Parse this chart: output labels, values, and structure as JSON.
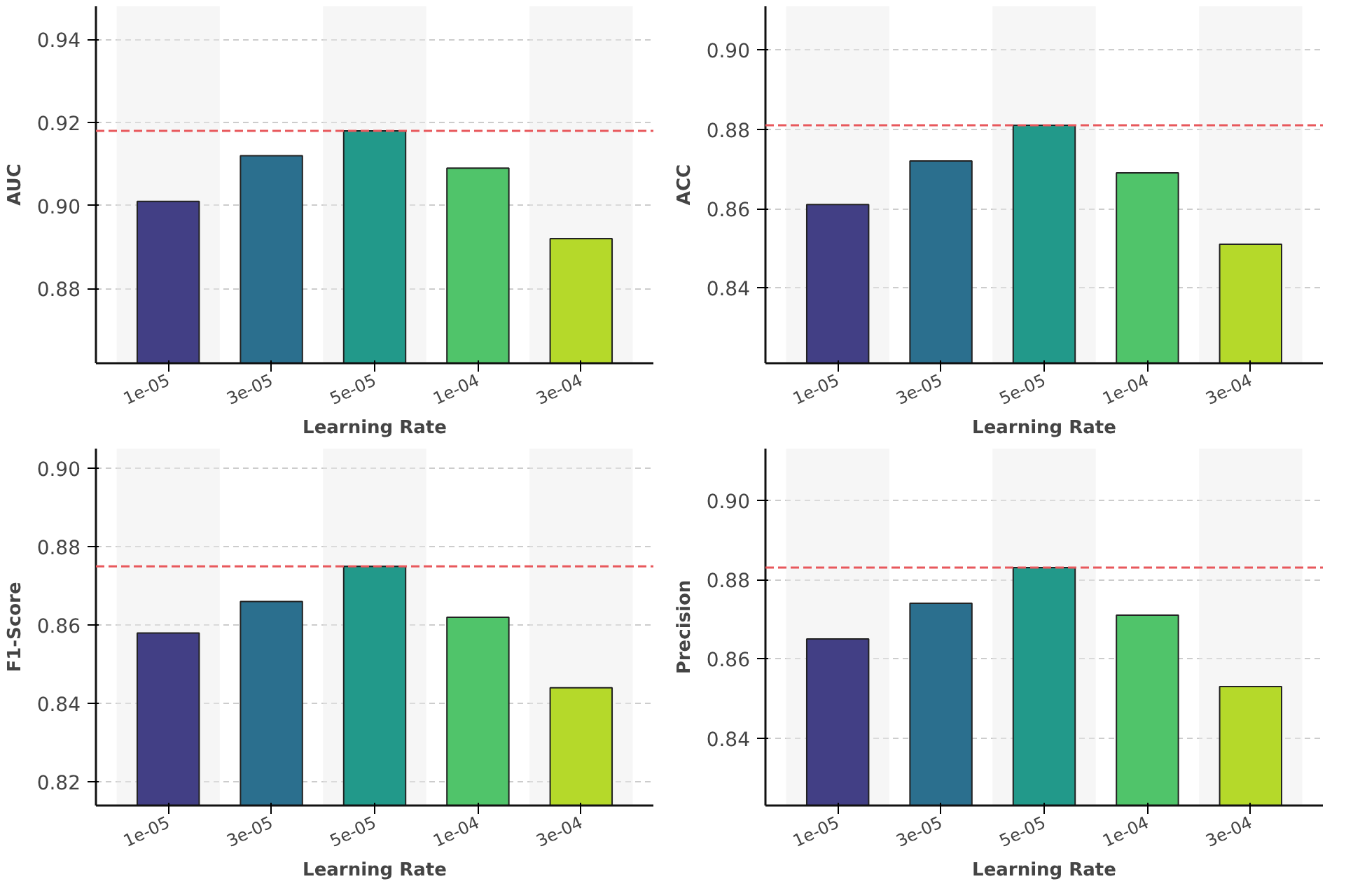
{
  "chart_data": [
    {
      "type": "bar",
      "xlabel": "Learning Rate",
      "ylabel": "AUC",
      "categories": [
        "1e-05",
        "3e-05",
        "5e-05",
        "1e-04",
        "3e-04"
      ],
      "values": [
        0.901,
        0.912,
        0.918,
        0.909,
        0.892
      ],
      "colors": [
        "#423f85",
        "#2b6f8e",
        "#22998a",
        "#50c46a",
        "#b5d92a"
      ],
      "ylim": [
        0.862,
        0.948
      ],
      "yticks": [
        {
          "value": 0.88,
          "label": "0.88"
        },
        {
          "value": 0.9,
          "label": "0.90"
        },
        {
          "value": 0.92,
          "label": "0.92"
        },
        {
          "value": 0.94,
          "label": "0.94"
        }
      ],
      "grid": "y",
      "ref_lines": [
        {
          "axis": "y",
          "value": 0.918,
          "color": "#e8585c",
          "line_style": "dashed"
        }
      ]
    },
    {
      "type": "bar",
      "xlabel": "Learning Rate",
      "ylabel": "ACC",
      "categories": [
        "1e-05",
        "3e-05",
        "5e-05",
        "1e-04",
        "3e-04"
      ],
      "values": [
        0.861,
        0.872,
        0.881,
        0.869,
        0.851
      ],
      "colors": [
        "#423f85",
        "#2b6f8e",
        "#22998a",
        "#50c46a",
        "#b5d92a"
      ],
      "ylim": [
        0.821,
        0.911
      ],
      "yticks": [
        {
          "value": 0.84,
          "label": "0.84"
        },
        {
          "value": 0.86,
          "label": "0.86"
        },
        {
          "value": 0.88,
          "label": "0.88"
        },
        {
          "value": 0.9,
          "label": "0.90"
        }
      ],
      "grid": "y",
      "ref_lines": [
        {
          "axis": "y",
          "value": 0.881,
          "color": "#e8585c",
          "line_style": "dashed"
        }
      ]
    },
    {
      "type": "bar",
      "xlabel": "Learning Rate",
      "ylabel": "F1-Score",
      "categories": [
        "1e-05",
        "3e-05",
        "5e-05",
        "1e-04",
        "3e-04"
      ],
      "values": [
        0.858,
        0.866,
        0.875,
        0.862,
        0.844
      ],
      "colors": [
        "#423f85",
        "#2b6f8e",
        "#22998a",
        "#50c46a",
        "#b5d92a"
      ],
      "ylim": [
        0.814,
        0.905
      ],
      "yticks": [
        {
          "value": 0.82,
          "label": "0.82"
        },
        {
          "value": 0.84,
          "label": "0.84"
        },
        {
          "value": 0.86,
          "label": "0.86"
        },
        {
          "value": 0.88,
          "label": "0.88"
        },
        {
          "value": 0.9,
          "label": "0.90"
        }
      ],
      "grid": "y",
      "ref_lines": [
        {
          "axis": "y",
          "value": 0.875,
          "color": "#e8585c",
          "line_style": "dashed"
        }
      ]
    },
    {
      "type": "bar",
      "xlabel": "Learning Rate",
      "ylabel": "Precision",
      "categories": [
        "1e-05",
        "3e-05",
        "5e-05",
        "1e-04",
        "3e-04"
      ],
      "values": [
        0.865,
        0.874,
        0.883,
        0.871,
        0.853
      ],
      "colors": [
        "#423f85",
        "#2b6f8e",
        "#22998a",
        "#50c46a",
        "#b5d92a"
      ],
      "ylim": [
        0.823,
        0.913
      ],
      "yticks": [
        {
          "value": 0.84,
          "label": "0.84"
        },
        {
          "value": 0.86,
          "label": "0.86"
        },
        {
          "value": 0.88,
          "label": "0.88"
        },
        {
          "value": 0.9,
          "label": "0.90"
        }
      ],
      "grid": "y",
      "ref_lines": [
        {
          "axis": "y",
          "value": 0.883,
          "color": "#e8585c",
          "line_style": "dashed"
        }
      ]
    }
  ]
}
